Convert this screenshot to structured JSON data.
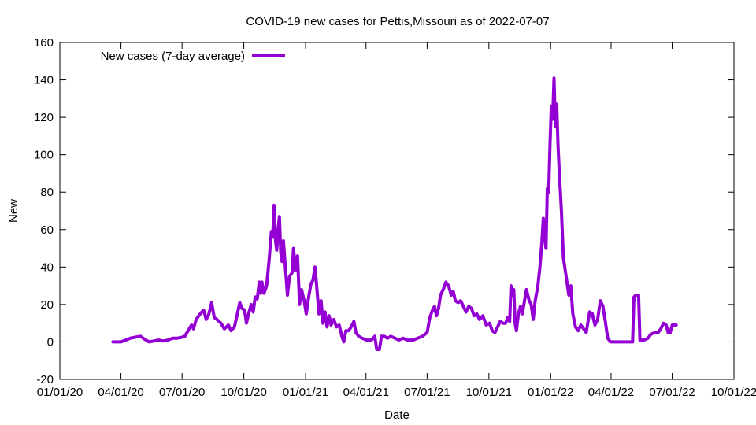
{
  "chart_data": {
    "type": "line",
    "title": "COVID-19 new cases for Pettis,Missouri as of 2022-07-07",
    "xlabel": "Date",
    "ylabel": "New",
    "xlim": [
      "2020-01-01",
      "2022-10-01"
    ],
    "ylim": [
      -20,
      160
    ],
    "x_ticks": [
      {
        "date": "2020-01-01",
        "label": "01/01/20"
      },
      {
        "date": "2020-04-01",
        "label": "04/01/20"
      },
      {
        "date": "2020-07-01",
        "label": "07/01/20"
      },
      {
        "date": "2020-10-01",
        "label": "10/01/20"
      },
      {
        "date": "2021-01-01",
        "label": "01/01/21"
      },
      {
        "date": "2021-04-01",
        "label": "04/01/21"
      },
      {
        "date": "2021-07-01",
        "label": "07/01/21"
      },
      {
        "date": "2021-10-01",
        "label": "10/01/21"
      },
      {
        "date": "2022-01-01",
        "label": "01/01/22"
      },
      {
        "date": "2022-04-01",
        "label": "04/01/22"
      },
      {
        "date": "2022-07-01",
        "label": "07/01/22"
      },
      {
        "date": "2022-10-01",
        "label": "10/01/22"
      }
    ],
    "y_ticks": [
      -20,
      0,
      20,
      40,
      60,
      80,
      100,
      120,
      140,
      160
    ],
    "grid": false,
    "legend_position": "top-left",
    "series": [
      {
        "name": "New cases (7-day average)",
        "color": "#9400d3",
        "points": [
          [
            "2020-03-20",
            0
          ],
          [
            "2020-04-01",
            0
          ],
          [
            "2020-04-08",
            1
          ],
          [
            "2020-04-15",
            2
          ],
          [
            "2020-04-22",
            2.5
          ],
          [
            "2020-04-30",
            3
          ],
          [
            "2020-05-06",
            1.5
          ],
          [
            "2020-05-13",
            0
          ],
          [
            "2020-05-20",
            0.5
          ],
          [
            "2020-05-27",
            1
          ],
          [
            "2020-06-03",
            0.5
          ],
          [
            "2020-06-10",
            1
          ],
          [
            "2020-06-17",
            2
          ],
          [
            "2020-06-24",
            2
          ],
          [
            "2020-07-01",
            2.5
          ],
          [
            "2020-07-05",
            3
          ],
          [
            "2020-07-10",
            6
          ],
          [
            "2020-07-15",
            9
          ],
          [
            "2020-07-18",
            7
          ],
          [
            "2020-07-22",
            12
          ],
          [
            "2020-07-28",
            15
          ],
          [
            "2020-08-02",
            17
          ],
          [
            "2020-08-06",
            12
          ],
          [
            "2020-08-10",
            15
          ],
          [
            "2020-08-14",
            21
          ],
          [
            "2020-08-18",
            13
          ],
          [
            "2020-08-22",
            12
          ],
          [
            "2020-08-28",
            10
          ],
          [
            "2020-09-02",
            7
          ],
          [
            "2020-09-08",
            9
          ],
          [
            "2020-09-12",
            6
          ],
          [
            "2020-09-17",
            8
          ],
          [
            "2020-09-22",
            16
          ],
          [
            "2020-09-25",
            21
          ],
          [
            "2020-09-28",
            18
          ],
          [
            "2020-10-02",
            17
          ],
          [
            "2020-10-05",
            10
          ],
          [
            "2020-10-08",
            15
          ],
          [
            "2020-10-12",
            20
          ],
          [
            "2020-10-15",
            16
          ],
          [
            "2020-10-18",
            24
          ],
          [
            "2020-10-21",
            23
          ],
          [
            "2020-10-24",
            32
          ],
          [
            "2020-10-26",
            26
          ],
          [
            "2020-10-28",
            32
          ],
          [
            "2020-10-31",
            26
          ],
          [
            "2020-11-04",
            30
          ],
          [
            "2020-11-08",
            45
          ],
          [
            "2020-11-11",
            59
          ],
          [
            "2020-11-13",
            56
          ],
          [
            "2020-11-15",
            73
          ],
          [
            "2020-11-17",
            55
          ],
          [
            "2020-11-19",
            49
          ],
          [
            "2020-11-21",
            60
          ],
          [
            "2020-11-23",
            67
          ],
          [
            "2020-11-25",
            48
          ],
          [
            "2020-11-27",
            43
          ],
          [
            "2020-11-29",
            54
          ],
          [
            "2020-12-02",
            39
          ],
          [
            "2020-12-05",
            25
          ],
          [
            "2020-12-08",
            35
          ],
          [
            "2020-12-12",
            37
          ],
          [
            "2020-12-14",
            50
          ],
          [
            "2020-12-17",
            38
          ],
          [
            "2020-12-20",
            46
          ],
          [
            "2020-12-23",
            20
          ],
          [
            "2020-12-26",
            28
          ],
          [
            "2020-12-30",
            22
          ],
          [
            "2021-01-02",
            15
          ],
          [
            "2021-01-06",
            25
          ],
          [
            "2021-01-09",
            31
          ],
          [
            "2021-01-12",
            33
          ],
          [
            "2021-01-15",
            40
          ],
          [
            "2021-01-18",
            28
          ],
          [
            "2021-01-21",
            15
          ],
          [
            "2021-01-24",
            22
          ],
          [
            "2021-01-27",
            10
          ],
          [
            "2021-01-30",
            16
          ],
          [
            "2021-02-02",
            8
          ],
          [
            "2021-02-05",
            14
          ],
          [
            "2021-02-08",
            9
          ],
          [
            "2021-02-12",
            12
          ],
          [
            "2021-02-16",
            8
          ],
          [
            "2021-02-20",
            9
          ],
          [
            "2021-02-24",
            3
          ],
          [
            "2021-02-27",
            0
          ],
          [
            "2021-03-02",
            6
          ],
          [
            "2021-03-06",
            6
          ],
          [
            "2021-03-10",
            8
          ],
          [
            "2021-03-14",
            11
          ],
          [
            "2021-03-17",
            5
          ],
          [
            "2021-03-21",
            3
          ],
          [
            "2021-03-26",
            2
          ],
          [
            "2021-04-02",
            1
          ],
          [
            "2021-04-09",
            1
          ],
          [
            "2021-04-14",
            3
          ],
          [
            "2021-04-17",
            -4
          ],
          [
            "2021-04-21",
            -4
          ],
          [
            "2021-04-24",
            3
          ],
          [
            "2021-04-28",
            3
          ],
          [
            "2021-05-03",
            2
          ],
          [
            "2021-05-08",
            3
          ],
          [
            "2021-05-14",
            2
          ],
          [
            "2021-05-20",
            1
          ],
          [
            "2021-05-26",
            2
          ],
          [
            "2021-06-02",
            1
          ],
          [
            "2021-06-10",
            1
          ],
          [
            "2021-06-17",
            2
          ],
          [
            "2021-06-24",
            3
          ],
          [
            "2021-07-01",
            5
          ],
          [
            "2021-07-05",
            13
          ],
          [
            "2021-07-09",
            17
          ],
          [
            "2021-07-12",
            19
          ],
          [
            "2021-07-15",
            14
          ],
          [
            "2021-07-18",
            18
          ],
          [
            "2021-07-21",
            25
          ],
          [
            "2021-07-25",
            28
          ],
          [
            "2021-07-29",
            32
          ],
          [
            "2021-08-02",
            30
          ],
          [
            "2021-08-06",
            25
          ],
          [
            "2021-08-09",
            27
          ],
          [
            "2021-08-12",
            22
          ],
          [
            "2021-08-16",
            21
          ],
          [
            "2021-08-20",
            22
          ],
          [
            "2021-08-24",
            19
          ],
          [
            "2021-08-28",
            16
          ],
          [
            "2021-09-01",
            19
          ],
          [
            "2021-09-05",
            18
          ],
          [
            "2021-09-09",
            14
          ],
          [
            "2021-09-13",
            15
          ],
          [
            "2021-09-17",
            12
          ],
          [
            "2021-09-22",
            14
          ],
          [
            "2021-09-27",
            9
          ],
          [
            "2021-10-02",
            10
          ],
          [
            "2021-10-06",
            6
          ],
          [
            "2021-10-10",
            5
          ],
          [
            "2021-10-14",
            8
          ],
          [
            "2021-10-18",
            11
          ],
          [
            "2021-10-22",
            10
          ],
          [
            "2021-10-26",
            10
          ],
          [
            "2021-10-29",
            13
          ],
          [
            "2021-11-01",
            11
          ],
          [
            "2021-11-03",
            30
          ],
          [
            "2021-11-05",
            25
          ],
          [
            "2021-11-07",
            28
          ],
          [
            "2021-11-09",
            10
          ],
          [
            "2021-11-11",
            6
          ],
          [
            "2021-11-14",
            15
          ],
          [
            "2021-11-17",
            19
          ],
          [
            "2021-11-20",
            15
          ],
          [
            "2021-11-23",
            22
          ],
          [
            "2021-11-26",
            28
          ],
          [
            "2021-11-30",
            22
          ],
          [
            "2021-12-03",
            20
          ],
          [
            "2021-12-06",
            12
          ],
          [
            "2021-12-09",
            22
          ],
          [
            "2021-12-13",
            30
          ],
          [
            "2021-12-16",
            40
          ],
          [
            "2021-12-19",
            54
          ],
          [
            "2021-12-21",
            66
          ],
          [
            "2021-12-23",
            55
          ],
          [
            "2021-12-25",
            50
          ],
          [
            "2021-12-27",
            82
          ],
          [
            "2021-12-29",
            80
          ],
          [
            "2021-12-31",
            105
          ],
          [
            "2022-01-02",
            126
          ],
          [
            "2022-01-04",
            119
          ],
          [
            "2022-01-06",
            141
          ],
          [
            "2022-01-08",
            115
          ],
          [
            "2022-01-10",
            127
          ],
          [
            "2022-01-12",
            105
          ],
          [
            "2022-01-14",
            90
          ],
          [
            "2022-01-17",
            70
          ],
          [
            "2022-01-20",
            45
          ],
          [
            "2022-01-24",
            35
          ],
          [
            "2022-01-28",
            25
          ],
          [
            "2022-01-31",
            30
          ],
          [
            "2022-02-03",
            15
          ],
          [
            "2022-02-07",
            8
          ],
          [
            "2022-02-11",
            6
          ],
          [
            "2022-02-15",
            9
          ],
          [
            "2022-02-19",
            7
          ],
          [
            "2022-02-23",
            5
          ],
          [
            "2022-02-28",
            16
          ],
          [
            "2022-03-04",
            15
          ],
          [
            "2022-03-08",
            9
          ],
          [
            "2022-03-12",
            12
          ],
          [
            "2022-03-16",
            22
          ],
          [
            "2022-03-20",
            19
          ],
          [
            "2022-03-23",
            12
          ],
          [
            "2022-03-27",
            2
          ],
          [
            "2022-03-31",
            0
          ],
          [
            "2022-04-10",
            0
          ],
          [
            "2022-04-20",
            0
          ],
          [
            "2022-05-03",
            0
          ],
          [
            "2022-05-05",
            24
          ],
          [
            "2022-05-08",
            25
          ],
          [
            "2022-05-12",
            25
          ],
          [
            "2022-05-14",
            1
          ],
          [
            "2022-05-20",
            1
          ],
          [
            "2022-05-26",
            2
          ],
          [
            "2022-05-30",
            4
          ],
          [
            "2022-06-05",
            5
          ],
          [
            "2022-06-10",
            5
          ],
          [
            "2022-06-14",
            7
          ],
          [
            "2022-06-18",
            10
          ],
          [
            "2022-06-22",
            9
          ],
          [
            "2022-06-25",
            5
          ],
          [
            "2022-06-28",
            5
          ],
          [
            "2022-07-01",
            9
          ],
          [
            "2022-07-07",
            9
          ]
        ]
      }
    ]
  }
}
